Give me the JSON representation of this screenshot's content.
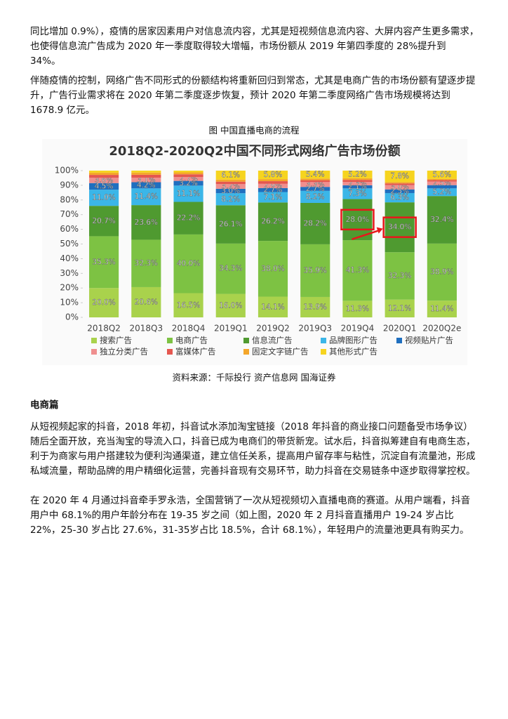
{
  "document": {
    "paragraphs_top": [
      "同比增加 0.9%），疫情的居家因素用户对信息流内容，尤其是短视频信息流内容、大屏内容产生更多需求，也使得信息流广告成为 2020 年一季度取得较大增幅，市场份额从 2019 年第四季度的 28%提升到 34%。",
      "伴随疫情的控制，网络广告不同形式的份额结构将重新回归到常态，尤其是电商广告的市场份额有望逐步提升，广告行业需求将在 2020 年第二季度逐步恢复，预计 2020 年第二季度网络广告市场规模将达到 1678.9 亿元。"
    ],
    "figure_caption": "图 中国直播电商的流程",
    "source": "资料来源：千际投行 资产信息网 国海证券",
    "heading": "电商篇",
    "paragraphs_bottom": [
      "从短视频起家的抖音，2018 年初，抖音试水添加淘宝链接（2018 年抖音的商业接口问题备受市场争议）随后全面开放，充当淘宝的导流入口，抖音已成为电商们的带货新宠。试水后，抖音拟筹建自有电商生态，利于为商家与用户搭建较为便利沟通渠道，建立信任关系，提高用户留存率与粘性，沉淀自有流量池，形成私域流量，帮助品牌的用户精细化运营，完善抖音现有交易环节，助力抖音在交易链条中逐步取得掌控权。",
      "在 2020 年 4 月通过抖音牵手罗永浩，全国营销了一次从短视频切入直播电商的赛道。从用户端看，抖音用户中 68.1%的用户年龄分布在 19-35 岁之间（如上图，2020 年 2 月抖音直播用户 19-24 岁占比 22%，25-30 岁占比 27.6%，31-35岁占比 18.5%，合计 68.1%），年轻用户的流量池更具有购买力。"
    ]
  },
  "chart_data": {
    "type": "stacked_bar",
    "title": "2018Q2-2020Q2中国不同形式网络广告市场份额",
    "categories": [
      "2018Q2",
      "2018Q3",
      "2018Q4",
      "2019Q1",
      "2019Q2",
      "2019Q3",
      "2019Q4",
      "2020Q1",
      "2020Q2e"
    ],
    "ylim": [
      0,
      100
    ],
    "yticks": [
      {
        "value": 0,
        "label": "0%"
      },
      {
        "value": 10,
        "label": "10%"
      },
      {
        "value": 20,
        "label": "20%"
      },
      {
        "value": 30,
        "label": "30%"
      },
      {
        "value": 40,
        "label": "40%"
      },
      {
        "value": 50,
        "label": "50%"
      },
      {
        "value": 60,
        "label": "60%"
      },
      {
        "value": 70,
        "label": "70%"
      },
      {
        "value": 80,
        "label": "80%"
      },
      {
        "value": 90,
        "label": "90%"
      },
      {
        "value": 100,
        "label": "100%"
      }
    ],
    "series": [
      {
        "name": "搜索广告",
        "color": "#a9d24c",
        "values": [
          20.0,
          20.6,
          16.5,
          16.0,
          14.1,
          13.9,
          11.3,
          12.1,
          11.4
        ],
        "value_labels": [
          "20.0%",
          "20.6%",
          "16.5%",
          "16.0%",
          "14.1%",
          "13.9%",
          "11.3%",
          "12.1%",
          "11.4%"
        ]
      },
      {
        "name": "电商广告",
        "color": "#7dc243",
        "values": [
          35.3,
          32.3,
          40.0,
          34.3,
          38.0,
          35.9,
          41.3,
          32.3,
          38.9
        ],
        "value_labels": [
          "35.3%",
          "32.3%",
          "40.0%",
          "34.3%",
          "38.0%",
          "35.9%",
          "41.3%",
          "32.3%",
          "38.9%"
        ]
      },
      {
        "name": "信息流广告",
        "color": "#4f9a30",
        "values": [
          20.7,
          23.6,
          22.2,
          26.1,
          26.2,
          28.2,
          28.0,
          34.0,
          32.4
        ],
        "value_labels": [
          "20.7%",
          "23.6%",
          "22.2%",
          "26.1%",
          "26.2%",
          "28.2%",
          "28.0%",
          "34.0%",
          "32.4%"
        ]
      },
      {
        "name": "品牌图形广告",
        "color": "#3bb6e8",
        "values": [
          11.0,
          11.4,
          11.1,
          8.2,
          7.1,
          8.2,
          7.3,
          6.3,
          5.2
        ],
        "value_labels": [
          "11.0%",
          "11.4%",
          "11.1%",
          "8.2%",
          "7.1%",
          "8.2%",
          "7.3%",
          "6.3%",
          "5.2%"
        ]
      },
      {
        "name": "视频贴片广告",
        "color": "#1f6fbf",
        "values": [
          4.5,
          4.2,
          3.2,
          3.0,
          2.7,
          2.7,
          2.1,
          2.5,
          2.2
        ],
        "value_labels": [
          "4.5%",
          "4.2%",
          "3.2%",
          "3.0%",
          "2.7%",
          "2.7%",
          "2.1%",
          "2.5%",
          null
        ]
      },
      {
        "name": "独立分类广告",
        "color": "#ef8f8f",
        "values": [
          3.6,
          3.1,
          2.7,
          3.2,
          2.9,
          3.3,
          2.3,
          3.0,
          2.5
        ],
        "value_labels": [
          "3.6%",
          "3.1%",
          "2.7%",
          "3.2%",
          "2.9%",
          "3.3%",
          "2.3%",
          "3.0%",
          "2.5%"
        ]
      },
      {
        "name": "富媒体广告",
        "color": "#e5574f",
        "values": [
          2.0,
          2.0,
          1.8,
          1.7,
          1.8,
          1.3,
          1.4,
          1.1,
          1.0
        ],
        "value_labels": [
          null,
          null,
          null,
          null,
          null,
          null,
          null,
          null,
          null
        ]
      },
      {
        "name": "固定文字链广告",
        "color": "#f4a62a",
        "values": [
          1.5,
          1.5,
          1.3,
          1.4,
          1.4,
          1.1,
          1.1,
          0.9,
          0.8
        ],
        "value_labels": [
          null,
          null,
          null,
          null,
          null,
          null,
          null,
          null,
          null
        ]
      },
      {
        "name": "其他形式广告",
        "color": "#f6d41f",
        "values": [
          1.4,
          1.3,
          1.2,
          6.1,
          5.8,
          5.4,
          5.2,
          7.8,
          5.6
        ],
        "value_labels": [
          null,
          null,
          null,
          "6.1%",
          "5.8%",
          "5.4%",
          "5.2%",
          "7.8%",
          "5.6%"
        ]
      }
    ],
    "legend_position": "bottom"
  }
}
